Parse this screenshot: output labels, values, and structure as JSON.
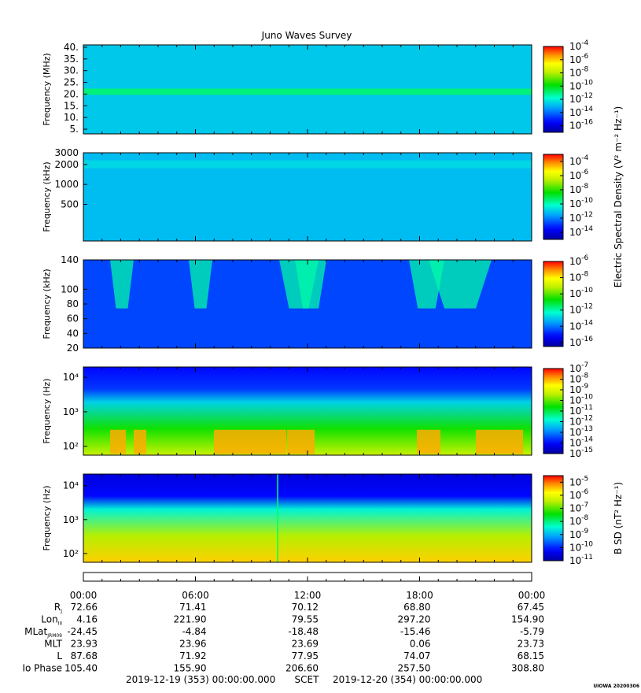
{
  "title": "Juno Waves Survey",
  "chart_data": [
    {
      "type": "heatmap",
      "panel": 1,
      "ylabel": "Frequency (MHz)",
      "yscale": "linear",
      "ylim": [
        3,
        41
      ],
      "yticks": [
        5,
        10,
        15,
        20,
        25,
        30,
        35,
        40
      ],
      "yticklabels": [
        "5.",
        "10.",
        "15.",
        "20.",
        "25.",
        "30.",
        "35.",
        "40."
      ],
      "colorbar": {
        "min_exp": -17,
        "max_exp": -4,
        "ticks_exp": [
          -4,
          -6,
          -8,
          -10,
          -12,
          -14,
          -16
        ],
        "labels": [
          "-4",
          "-6",
          "-8",
          "-10",
          "-12",
          "-14",
          "-16"
        ]
      },
      "description_values": {
        "background_exp": -12.7,
        "band_exp": -11,
        "band_freq": 21
      }
    },
    {
      "type": "heatmap",
      "panel": 2,
      "ylabel": "Frequency (kHz)",
      "yscale": "log",
      "ylim": [
        140,
        3000
      ],
      "yticks": [
        500,
        1000,
        2000,
        3000
      ],
      "yticklabels": [
        "500",
        "1000",
        "2000",
        "3000"
      ],
      "colorbar": {
        "min_exp": -15,
        "max_exp": -3,
        "ticks_exp": [
          -4,
          -6,
          -8,
          -10,
          -12,
          -14
        ],
        "labels": [
          "-4",
          "-6",
          "-8",
          "-10",
          "-12",
          "-14"
        ]
      },
      "colorbar_label": "Electric Spectral Density (V² m⁻² Hz⁻¹)",
      "description_values": {
        "background_exp": -11.2,
        "band_freq": [
          1750,
          2300
        ],
        "band_exp": -10.5
      }
    },
    {
      "type": "heatmap",
      "panel": 3,
      "ylabel": "Frequency (kHz)",
      "yscale": "linear",
      "ylim": [
        20,
        140
      ],
      "yticks": [
        20,
        40,
        60,
        80,
        100,
        140
      ],
      "yticklabels": [
        "20",
        "40",
        "60",
        "80",
        "100",
        "140"
      ],
      "colorbar": {
        "min_exp": -16.5,
        "max_exp": -6,
        "ticks_exp": [
          -6,
          -8,
          -10,
          -12,
          -14,
          -16
        ],
        "labels": [
          "-6",
          "-8",
          "-10",
          "-12",
          "-14",
          "-16"
        ]
      },
      "description_values": {
        "background_exp": -14.5,
        "bursts_exp": -12
      }
    },
    {
      "type": "heatmap",
      "panel": 4,
      "ylabel": "Frequency (Hz)",
      "yscale": "log",
      "ylim": [
        55,
        20000
      ],
      "yticks": [
        100,
        1000,
        10000
      ],
      "yticklabels": [
        "10²",
        "10³",
        "10⁴"
      ],
      "colorbar": {
        "min_exp": -15,
        "max_exp": -7,
        "ticks_exp": [
          -7,
          -8,
          -9,
          -10,
          -11,
          -12,
          -13,
          -14,
          -15
        ],
        "labels": [
          "-7",
          "-8",
          "-9",
          "-10",
          "-11",
          "-12",
          "-13",
          "-14",
          "-15"
        ]
      },
      "description_values": {
        "high_freq_exp": -14,
        "low_freq_exp": -10.5,
        "hot_band_exp": -8
      }
    },
    {
      "type": "heatmap",
      "panel": 5,
      "ylabel": "Frequency (Hz)",
      "yscale": "log",
      "ylim": [
        55,
        22000
      ],
      "yticks": [
        100,
        1000,
        10000
      ],
      "yticklabels": [
        "10²",
        "10³",
        "10⁴"
      ],
      "colorbar": {
        "min_exp": -11,
        "max_exp": -4.5,
        "ticks_exp": [
          -5,
          -6,
          -7,
          -8,
          -9,
          -10,
          -11
        ],
        "labels": [
          "-5",
          "-6",
          "-7",
          "-8",
          "-9",
          "-10",
          "-11"
        ]
      },
      "colorbar_label": "B SD (nT² Hz⁻¹)",
      "description_values": {
        "high_freq_exp": -10.5,
        "low_freq_exp": -6.5
      }
    }
  ],
  "time_axis": {
    "ticks": [
      "00:00",
      "06:00",
      "12:00",
      "18:00",
      "00:00"
    ],
    "minor_per_major": 6
  },
  "ephemeris": {
    "labels": [
      {
        "main": "R",
        "sub": "J"
      },
      {
        "main": "Lon",
        "sub": "III"
      },
      {
        "main": "MLat",
        "sub": "JRM09"
      },
      {
        "main": "MLT",
        "sub": ""
      },
      {
        "main": "L",
        "sub": ""
      },
      {
        "main": "Io Phase",
        "sub": ""
      }
    ],
    "rows": [
      [
        "72.66",
        "71.41",
        "70.12",
        "68.80",
        "67.45"
      ],
      [
        "4.16",
        "221.90",
        "79.55",
        "297.20",
        "154.90"
      ],
      [
        "-24.45",
        "-4.84",
        "-18.48",
        "-15.46",
        "-5.79"
      ],
      [
        "23.93",
        "23.96",
        "23.69",
        "0.06",
        "23.73"
      ],
      [
        "87.68",
        "71.92",
        "77.95",
        "74.07",
        "68.15"
      ],
      [
        "105.40",
        "155.90",
        "206.60",
        "257.50",
        "308.80"
      ]
    ]
  },
  "footer": {
    "start": "2019-12-19 (353) 00:00:00.000",
    "scet": "SCET",
    "end": "2019-12-20 (354) 00:00:00.000",
    "credit": "UIOWA 20200306"
  }
}
